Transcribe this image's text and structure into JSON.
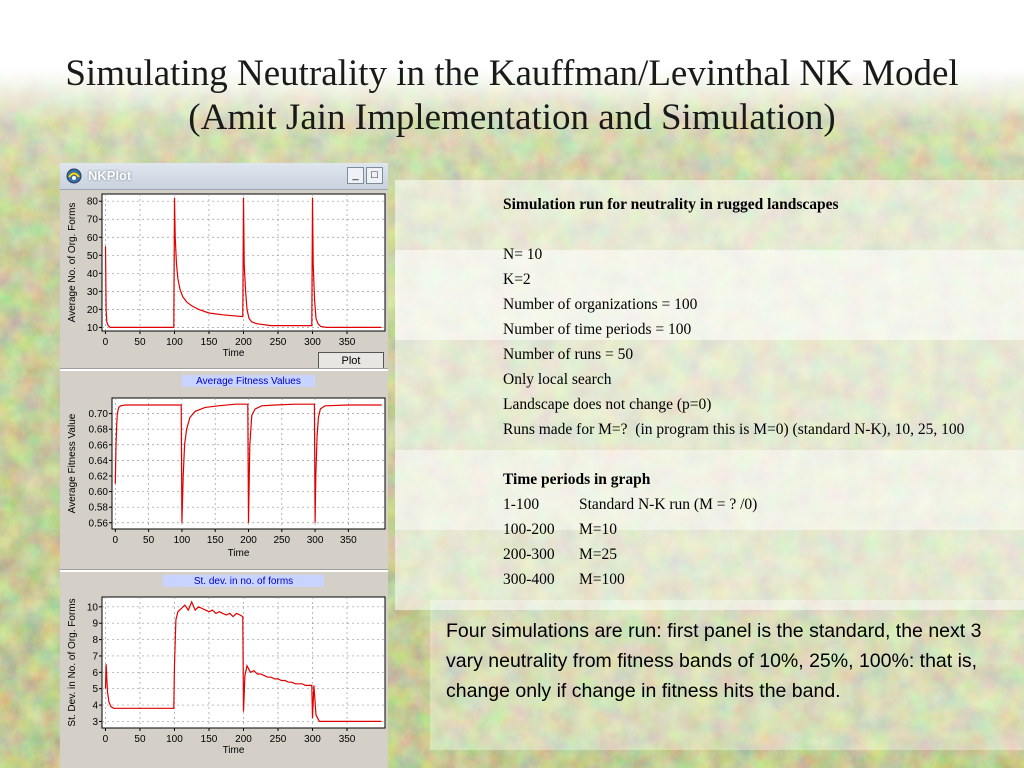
{
  "slide": {
    "title": "Simulating Neutrality in the Kauffman/Levinthal NK Model (Amit Jain Implementation and Simulation)"
  },
  "window": {
    "title": "NKPlot",
    "minimize_glyph": "_",
    "maximize_glyph": "□",
    "plot_button_label": "Plot"
  },
  "colors": {
    "series": "#e00000",
    "panel_title_bg": "#c8d4ff",
    "panel_title_text": "#0000c0",
    "plot_bg": "#ffffff",
    "window_bg": "#d4d0c8"
  },
  "chart_data": [
    {
      "type": "line",
      "title": "",
      "xlabel": "Time",
      "ylabel": "Average No. of Org.  Forms",
      "xlim": [
        -5,
        405
      ],
      "ylim": [
        8,
        84
      ],
      "xticks": [
        0,
        50,
        100,
        150,
        200,
        250,
        300,
        350
      ],
      "yticks": [
        10,
        20,
        30,
        40,
        50,
        60,
        70,
        80
      ],
      "grid": true,
      "series": [
        {
          "x": [
            0,
            1,
            2,
            4,
            7,
            12,
            20,
            35,
            60,
            99,
            100,
            101,
            103,
            105,
            108,
            112,
            118,
            125,
            135,
            150,
            170,
            199,
            200,
            201,
            203,
            205,
            208,
            212,
            220,
            240,
            270,
            299,
            300,
            301,
            303,
            305,
            308,
            312,
            320,
            350,
            400
          ],
          "y": [
            55,
            20,
            13,
            11,
            10,
            10,
            10,
            10,
            10,
            10,
            82,
            60,
            45,
            37,
            31,
            27,
            24,
            22,
            20,
            18,
            17,
            16,
            82,
            45,
            30,
            20,
            15,
            13,
            12,
            11,
            11,
            11,
            82,
            45,
            25,
            15,
            12,
            10.5,
            10,
            10,
            10
          ]
        }
      ]
    },
    {
      "type": "line",
      "title": "Average Fitness Values",
      "xlabel": "Time",
      "ylabel": "Average Fitness Value",
      "xlim": [
        -5,
        405
      ],
      "ylim": [
        0.552,
        0.72
      ],
      "xticks": [
        0,
        50,
        100,
        150,
        200,
        250,
        300,
        350
      ],
      "yticks": [
        0.56,
        0.58,
        0.6,
        0.62,
        0.64,
        0.66,
        0.68,
        0.7
      ],
      "grid": true,
      "series": [
        {
          "x": [
            0,
            1,
            2,
            3,
            5,
            8,
            15,
            30,
            60,
            99,
            100,
            102,
            104,
            107,
            112,
            120,
            135,
            155,
            180,
            199,
            200,
            202,
            205,
            210,
            220,
            240,
            270,
            299,
            300,
            301,
            303,
            305,
            308,
            315,
            350,
            400
          ],
          "y": [
            0.61,
            0.66,
            0.685,
            0.7,
            0.708,
            0.71,
            0.711,
            0.711,
            0.711,
            0.711,
            0.56,
            0.62,
            0.66,
            0.68,
            0.695,
            0.703,
            0.708,
            0.71,
            0.712,
            0.712,
            0.56,
            0.66,
            0.698,
            0.706,
            0.71,
            0.711,
            0.712,
            0.712,
            0.56,
            0.62,
            0.672,
            0.695,
            0.706,
            0.71,
            0.711,
            0.711
          ]
        }
      ]
    },
    {
      "type": "line",
      "title": "St.  dev.  in no.  of forms",
      "xlabel": "Time",
      "ylabel": "St.  Dev.  in  No.  of Org.  Forms",
      "xlim": [
        -5,
        405
      ],
      "ylim": [
        2.6,
        10.6
      ],
      "xticks": [
        0,
        50,
        100,
        150,
        200,
        250,
        300,
        350
      ],
      "yticks": [
        3,
        4,
        5,
        6,
        7,
        8,
        9,
        10
      ],
      "grid": true,
      "series": [
        {
          "x": [
            0,
            1,
            3,
            5,
            8,
            12,
            20,
            40,
            70,
            99,
            100,
            102,
            105,
            110,
            115,
            120,
            125,
            130,
            135,
            140,
            145,
            150,
            155,
            160,
            165,
            170,
            175,
            180,
            185,
            190,
            195,
            199,
            200,
            202,
            205,
            210,
            215,
            220,
            225,
            230,
            235,
            240,
            245,
            250,
            255,
            260,
            265,
            270,
            275,
            280,
            285,
            290,
            295,
            299,
            300,
            302,
            305,
            310,
            330,
            370,
            400
          ],
          "y": [
            5,
            6.5,
            4.8,
            4.2,
            3.9,
            3.8,
            3.8,
            3.8,
            3.8,
            3.8,
            6.5,
            9.2,
            9.7,
            9.9,
            10.1,
            9.8,
            10.3,
            9.8,
            10.0,
            9.9,
            9.8,
            9.7,
            9.8,
            9.6,
            9.7,
            9.6,
            9.5,
            9.6,
            9.4,
            9.6,
            9.5,
            9.4,
            3.6,
            5.8,
            6.4,
            6.0,
            6.1,
            5.9,
            5.9,
            5.8,
            5.7,
            5.7,
            5.6,
            5.6,
            5.5,
            5.5,
            5.4,
            5.4,
            5.3,
            5.3,
            5.3,
            5.2,
            5.2,
            5.2,
            3.2,
            5.2,
            3.4,
            3.0,
            3.0,
            3.0,
            3.0
          ]
        }
      ]
    }
  ],
  "info": {
    "heading": "Simulation run for neutrality in rugged landscapes",
    "params": [
      "N= 10",
      "K=2",
      "Number of organizations = 100",
      "Number of time periods = 100",
      "Number of runs = 50",
      "Only local search",
      "Landscape does not change (p=0)",
      "Runs made for M=?  (in program this is M=0) (standard N-K), 10, 25, 100"
    ],
    "periods_heading": "Time periods in graph",
    "periods": [
      {
        "range": "1-100",
        "desc": "Standard N-K run (M = ? /0)"
      },
      {
        "range": "100-200",
        "desc": "M=10"
      },
      {
        "range": "200-300",
        "desc": "M=25"
      },
      {
        "range": "300-400",
        "desc": "M=100"
      }
    ]
  },
  "summary": "Four simulations are run: first panel is the standard, the next 3 vary neutrality from fitness bands of 10%, 25%, 100%: that is, change only if change in fitness hits the band."
}
